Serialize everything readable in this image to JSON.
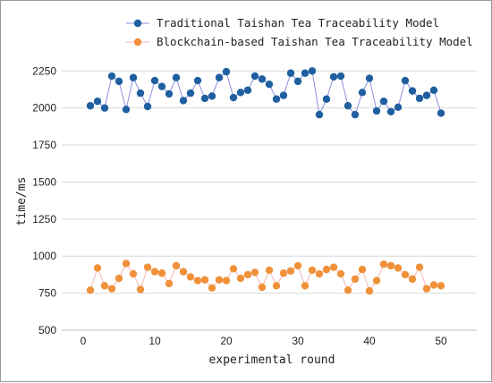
{
  "chart_data": {
    "type": "line",
    "xlabel": "experimental round",
    "ylabel": "time/ms",
    "xlim": [
      -3,
      55
    ],
    "ylim": [
      500,
      2300
    ],
    "xticks": [
      0,
      10,
      20,
      30,
      40,
      50
    ],
    "yticks": [
      500,
      750,
      1000,
      1250,
      1500,
      1750,
      2000,
      2250
    ],
    "grid": "horizontal",
    "legend_position": "top",
    "x": [
      1,
      2,
      3,
      4,
      5,
      6,
      7,
      8,
      9,
      10,
      11,
      12,
      13,
      14,
      15,
      16,
      17,
      18,
      19,
      20,
      21,
      22,
      23,
      24,
      25,
      26,
      27,
      28,
      29,
      30,
      31,
      32,
      33,
      34,
      35,
      36,
      37,
      38,
      39,
      40,
      41,
      42,
      43,
      44,
      45,
      46,
      47,
      48,
      49,
      50
    ],
    "series": [
      {
        "name": "Traditional Taishan Tea Traceability Model",
        "color": "#1f5fa0",
        "line_color": "#8e8ee0",
        "values": [
          2015,
          2045,
          2000,
          2215,
          2180,
          1990,
          2205,
          2100,
          2010,
          2185,
          2145,
          2095,
          2205,
          2050,
          2100,
          2185,
          2065,
          2080,
          2205,
          2245,
          2070,
          2105,
          2120,
          2215,
          2195,
          2160,
          2060,
          2085,
          2235,
          2180,
          2235,
          2250,
          1955,
          2060,
          2210,
          2215,
          2015,
          1955,
          2105,
          2200,
          1980,
          2045,
          1975,
          2005,
          2185,
          2115,
          2065,
          2085,
          2120,
          1965
        ]
      },
      {
        "name": "Blockchain-based Taishan Tea Traceability Model",
        "color": "#f0913a",
        "line_color": "#f4b6b6",
        "values": [
          770,
          920,
          800,
          780,
          850,
          950,
          880,
          775,
          925,
          895,
          885,
          815,
          935,
          895,
          860,
          835,
          840,
          785,
          840,
          835,
          915,
          850,
          875,
          890,
          790,
          905,
          800,
          885,
          900,
          935,
          800,
          905,
          880,
          910,
          925,
          880,
          770,
          845,
          910,
          765,
          835,
          945,
          935,
          920,
          875,
          845,
          925,
          780,
          805,
          800
        ]
      }
    ]
  }
}
